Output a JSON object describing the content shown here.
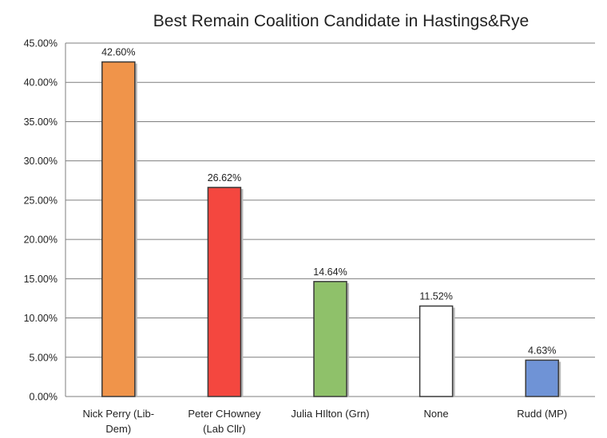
{
  "chart_data": {
    "type": "bar",
    "title": "Best Remain Coalition Candidate in Hastings&Rye",
    "categories": [
      [
        "Nick Perry (Lib-",
        "Dem)"
      ],
      [
        "Peter CHowney",
        "(Lab Cllr)"
      ],
      [
        "Julia HIlton (Grn)"
      ],
      [
        "None"
      ],
      [
        "Rudd (MP)"
      ]
    ],
    "values": [
      42.6,
      26.62,
      14.64,
      11.52,
      4.63
    ],
    "data_labels": [
      "42.60%",
      "26.62%",
      "14.64%",
      "11.52%",
      "4.63%"
    ],
    "bar_colors": [
      "#f0944a",
      "#f4473f",
      "#8fc16a",
      "#ffffff",
      "#6f93d6"
    ],
    "ylim": [
      0,
      45
    ],
    "yticks": [
      "0.00%",
      "5.00%",
      "10.00%",
      "15.00%",
      "20.00%",
      "25.00%",
      "30.00%",
      "35.00%",
      "40.00%",
      "45.00%"
    ],
    "ytick_values": [
      0,
      5,
      10,
      15,
      20,
      25,
      30,
      35,
      40,
      45
    ],
    "grid": true,
    "legend": "none",
    "xlabel": "",
    "ylabel": ""
  }
}
